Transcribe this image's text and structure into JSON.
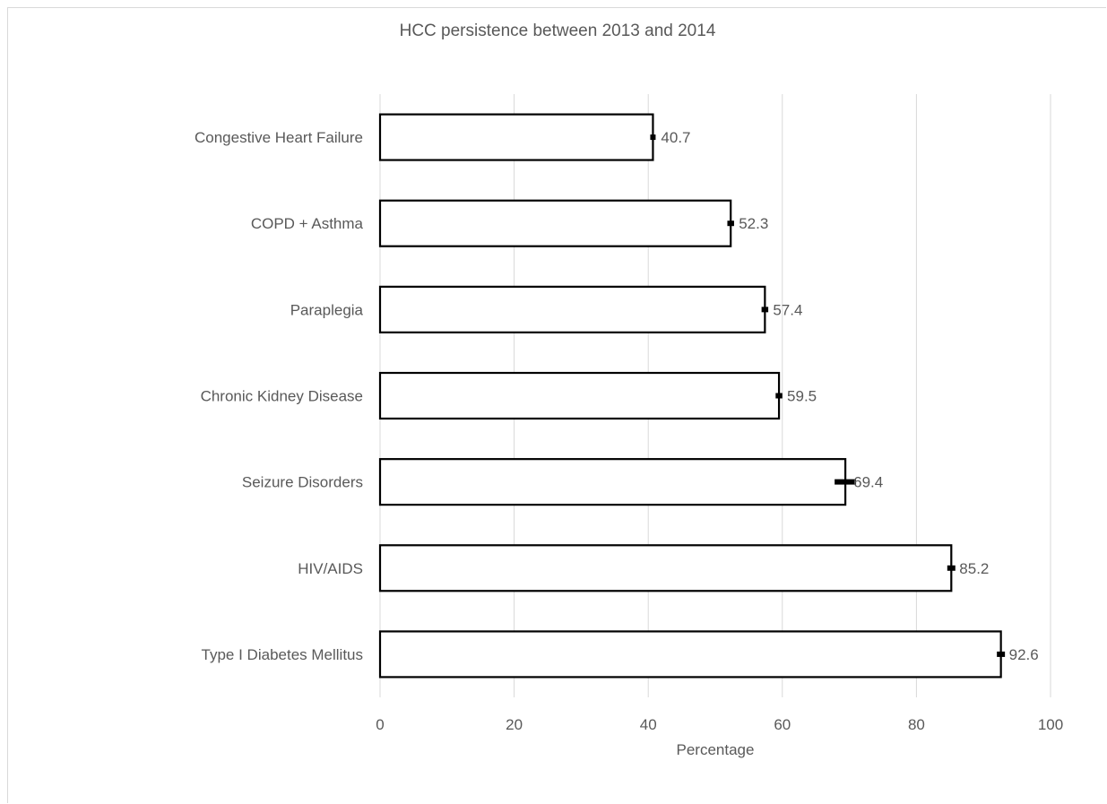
{
  "chart_data": {
    "type": "bar",
    "orientation": "horizontal",
    "title": "HCC persistence between 2013 and 2014",
    "xlabel": "Percentage",
    "ylabel": "",
    "xlim": [
      0,
      100
    ],
    "x_ticks": [
      0,
      20,
      40,
      60,
      80,
      100
    ],
    "grid": "vertical",
    "legend": "none",
    "categories": [
      "Congestive Heart Failure",
      "COPD + Asthma",
      "Paraplegia",
      "Chronic Kidney Disease",
      "Seizure Disorders",
      "HIV/AIDS",
      "Type I Diabetes Mellitus"
    ],
    "values": [
      40.7,
      52.3,
      57.4,
      59.5,
      69.4,
      85.2,
      92.6
    ],
    "value_labels": [
      "40.7",
      "52.3",
      "57.4",
      "59.5",
      "69.4",
      "85.2",
      "92.6"
    ],
    "error_bars": [
      [
        40.3,
        41.1
      ],
      [
        51.8,
        52.8
      ],
      [
        56.9,
        57.9
      ],
      [
        59.0,
        60.0
      ],
      [
        67.8,
        71.0
      ],
      [
        84.6,
        85.8
      ],
      [
        92.0,
        93.2
      ]
    ],
    "colors": {
      "bar_fill": "#ffffff",
      "bar_stroke": "#000000",
      "grid": "#d9d9d9",
      "text": "#595959"
    }
  }
}
